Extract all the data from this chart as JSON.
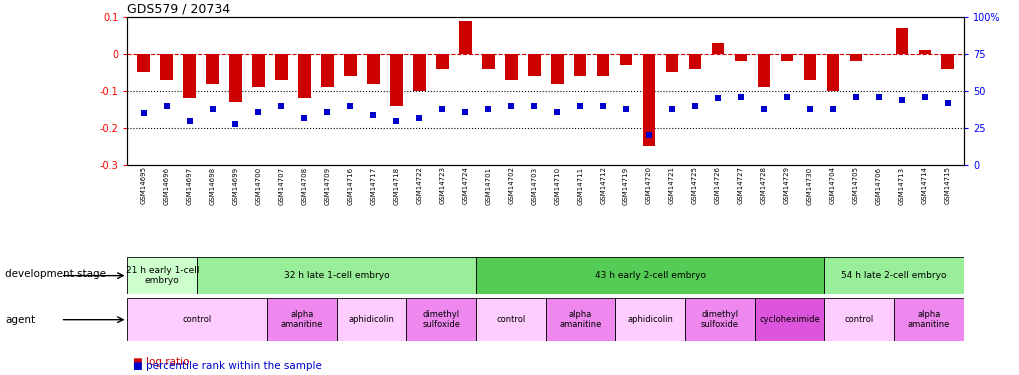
{
  "title": "GDS579 / 20734",
  "gsm_labels": [
    "GSM14695",
    "GSM14696",
    "GSM14697",
    "GSM14698",
    "GSM14699",
    "GSM14700",
    "GSM14707",
    "GSM14708",
    "GSM14709",
    "GSM14716",
    "GSM14717",
    "GSM14718",
    "GSM14722",
    "GSM14723",
    "GSM14724",
    "GSM14701",
    "GSM14702",
    "GSM14703",
    "GSM14710",
    "GSM14711",
    "GSM14712",
    "GSM14719",
    "GSM14720",
    "GSM14721",
    "GSM14725",
    "GSM14726",
    "GSM14727",
    "GSM14728",
    "GSM14729",
    "GSM14730",
    "GSM14704",
    "GSM14705",
    "GSM14706",
    "GSM14713",
    "GSM14714",
    "GSM14715"
  ],
  "log_ratio": [
    -0.05,
    -0.07,
    -0.12,
    -0.08,
    -0.13,
    -0.09,
    -0.07,
    -0.12,
    -0.09,
    -0.06,
    -0.08,
    -0.14,
    -0.1,
    -0.04,
    0.09,
    -0.04,
    -0.07,
    -0.06,
    -0.08,
    -0.06,
    -0.06,
    -0.03,
    -0.25,
    -0.05,
    -0.04,
    0.03,
    -0.02,
    -0.09,
    -0.02,
    -0.07,
    -0.1,
    -0.02,
    -0.0,
    0.07,
    0.01,
    -0.04
  ],
  "percentile_rank": [
    35,
    40,
    30,
    38,
    28,
    36,
    40,
    32,
    36,
    40,
    34,
    30,
    32,
    38,
    36,
    38,
    40,
    40,
    36,
    40,
    40,
    38,
    20,
    38,
    40,
    45,
    46,
    38,
    46,
    38,
    38,
    46,
    46,
    44,
    46,
    42
  ],
  "dev_stages": [
    {
      "label": "21 h early 1-cell\nembryо",
      "start": 0,
      "end": 3,
      "color": "#ccffcc"
    },
    {
      "label": "32 h late 1-cell embryo",
      "start": 3,
      "end": 15,
      "color": "#99ee99"
    },
    {
      "label": "43 h early 2-cell embryo",
      "start": 15,
      "end": 30,
      "color": "#55cc55"
    },
    {
      "label": "54 h late 2-cell embryo",
      "start": 30,
      "end": 36,
      "color": "#99ee99"
    }
  ],
  "agents": [
    {
      "label": "control",
      "start": 0,
      "end": 6,
      "color": "#ffccff"
    },
    {
      "label": "alpha\namanitine",
      "start": 6,
      "end": 9,
      "color": "#ee88ee"
    },
    {
      "label": "aphidicolin",
      "start": 9,
      "end": 12,
      "color": "#ffccff"
    },
    {
      "label": "dimethyl\nsulfoxide",
      "start": 12,
      "end": 15,
      "color": "#ee88ee"
    },
    {
      "label": "control",
      "start": 15,
      "end": 18,
      "color": "#ffccff"
    },
    {
      "label": "alpha\namanitine",
      "start": 18,
      "end": 21,
      "color": "#ee88ee"
    },
    {
      "label": "aphidicolin",
      "start": 21,
      "end": 24,
      "color": "#ffccff"
    },
    {
      "label": "dimethyl\nsulfoxide",
      "start": 24,
      "end": 27,
      "color": "#ee88ee"
    },
    {
      "label": "cycloheximide",
      "start": 27,
      "end": 30,
      "color": "#dd55dd"
    },
    {
      "label": "control",
      "start": 30,
      "end": 33,
      "color": "#ffccff"
    },
    {
      "label": "alpha\namanitine",
      "start": 33,
      "end": 36,
      "color": "#ee88ee"
    }
  ],
  "ylim": [
    -0.3,
    0.1
  ],
  "yticks_left": [
    0.1,
    0.0,
    -0.1,
    -0.2,
    -0.3
  ],
  "right_yticks": [
    100,
    75,
    50,
    25,
    0
  ],
  "bar_color": "#cc0000",
  "dot_color": "#0000cc",
  "hline_color": "#cc0000",
  "grid_color": "#000000",
  "xticklabel_bg": "#e8e8e8",
  "chart_bg": "#ffffff"
}
